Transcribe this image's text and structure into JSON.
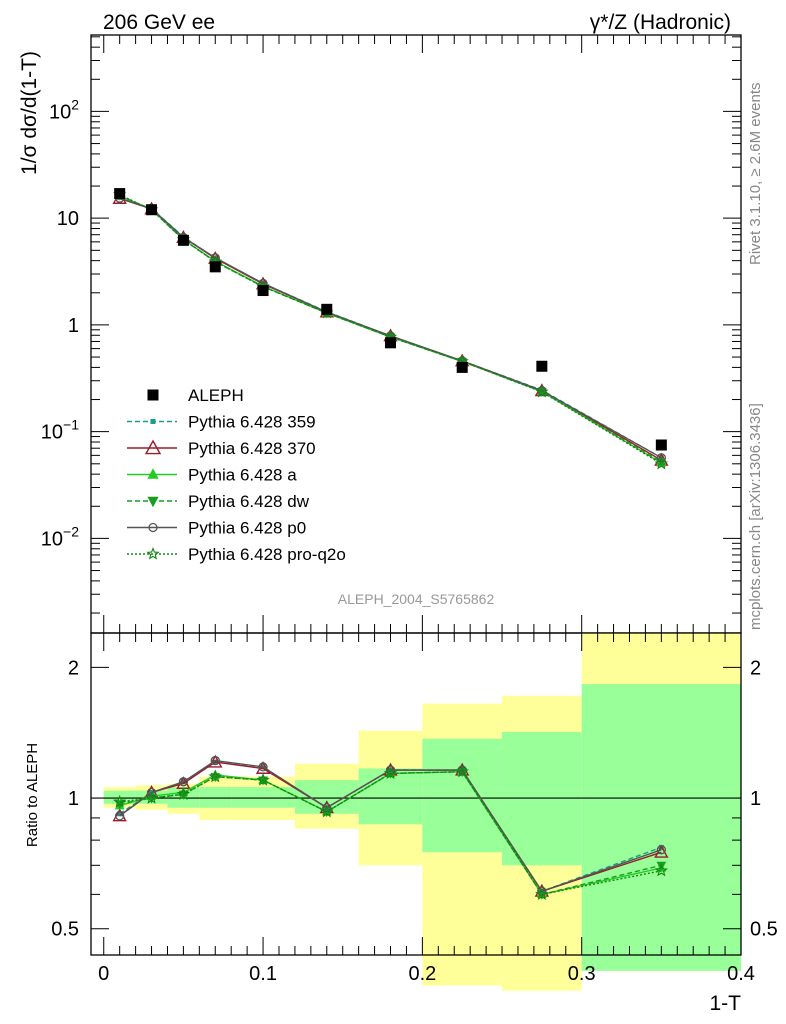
{
  "header": {
    "left": "206 GeV ee",
    "right": "γ*/Z (Hadronic)"
  },
  "side_labels": [
    "Rivet 3.1.10, ≥ 2.6M events",
    "mcplots.cern.ch [arXiv:1306.3436]"
  ],
  "analysis_id": "ALEPH_2004_S5765862",
  "chart_data": [
    {
      "type": "scatter",
      "ylabel": "1/σ dσ/d(1-T)",
      "log_y": true,
      "ylim": [
        0.0013,
        520
      ],
      "xlim": [
        -0.008,
        0.4
      ],
      "yticks": [
        {
          "v": 0.01,
          "base": "10",
          "exp": "−2"
        },
        {
          "v": 0.1,
          "base": "10",
          "exp": "−1"
        },
        {
          "v": 1,
          "base": "1",
          "exp": ""
        },
        {
          "v": 10,
          "base": "10",
          "exp": ""
        },
        {
          "v": 100,
          "base": "10",
          "exp": "2"
        }
      ],
      "data": {
        "name": "ALEPH",
        "x": [
          0.01,
          0.03,
          0.05,
          0.07,
          0.1,
          0.14,
          0.18,
          0.225,
          0.275,
          0.35
        ],
        "y": [
          17.0,
          12.0,
          6.2,
          3.5,
          2.1,
          1.4,
          0.68,
          0.4,
          0.41,
          0.075
        ]
      },
      "series": [
        {
          "name": "Pythia 6.428 359",
          "color": "#1a9e8c",
          "dash": "5,3",
          "marker": "square-small",
          "x": [
            0.01,
            0.03,
            0.05,
            0.07,
            0.1,
            0.14,
            0.18,
            0.225,
            0.275,
            0.35
          ],
          "y": [
            15.6,
            12.3,
            6.7,
            4.2,
            2.45,
            1.33,
            0.79,
            0.46,
            0.245,
            0.057
          ]
        },
        {
          "name": "Pythia 6.428 370",
          "color": "#9c1c2c",
          "dash": "",
          "marker": "triangle-open",
          "x": [
            0.01,
            0.03,
            0.05,
            0.07,
            0.1,
            0.14,
            0.18,
            0.225,
            0.275,
            0.35
          ],
          "y": [
            15.3,
            12.2,
            6.6,
            4.2,
            2.42,
            1.32,
            0.79,
            0.46,
            0.242,
            0.054
          ]
        },
        {
          "name": "Pythia 6.428 a",
          "color": "#22cc22",
          "dash": "",
          "marker": "triangle-filled",
          "x": [
            0.01,
            0.03,
            0.05,
            0.07,
            0.1,
            0.14,
            0.18,
            0.225,
            0.275,
            0.35
          ],
          "y": [
            16.2,
            12.1,
            6.3,
            3.95,
            2.3,
            1.29,
            0.77,
            0.455,
            0.238,
            0.051
          ]
        },
        {
          "name": "Pythia 6.428 dw",
          "color": "#1a9e22",
          "dash": "5,3",
          "marker": "triangle-down",
          "x": [
            0.01,
            0.03,
            0.05,
            0.07,
            0.1,
            0.14,
            0.18,
            0.225,
            0.275,
            0.35
          ],
          "y": [
            16.4,
            12.0,
            6.3,
            3.9,
            2.28,
            1.29,
            0.77,
            0.455,
            0.238,
            0.052
          ]
        },
        {
          "name": "Pythia 6.428 p0",
          "color": "#555555",
          "dash": "",
          "marker": "circle-open",
          "x": [
            0.01,
            0.03,
            0.05,
            0.07,
            0.1,
            0.14,
            0.18,
            0.225,
            0.275,
            0.35
          ],
          "y": [
            15.4,
            12.3,
            6.6,
            4.25,
            2.45,
            1.32,
            0.79,
            0.46,
            0.242,
            0.057
          ]
        },
        {
          "name": "Pythia 6.428 pro-q2o",
          "color": "#118811",
          "dash": "2,2",
          "marker": "star",
          "x": [
            0.01,
            0.03,
            0.05,
            0.07,
            0.1,
            0.14,
            0.18,
            0.225,
            0.275,
            0.35
          ],
          "y": [
            16.6,
            12.0,
            6.3,
            3.9,
            2.28,
            1.3,
            0.77,
            0.455,
            0.236,
            0.05
          ]
        }
      ]
    },
    {
      "type": "scatter",
      "ylabel": "Ratio to ALEPH",
      "xlabel": "1-T",
      "log_y": true,
      "ylim": [
        0.435,
        2.4
      ],
      "xlim": [
        -0.008,
        0.4
      ],
      "xticks": [
        0,
        0.1,
        0.2,
        0.3,
        0.4
      ],
      "yticks": [
        0.5,
        1,
        2
      ],
      "bands": {
        "edges": [
          0.0,
          0.02,
          0.04,
          0.06,
          0.08,
          0.12,
          0.16,
          0.2,
          0.25,
          0.3,
          0.4
        ],
        "inner": [
          [
            0.97,
            1.04
          ],
          [
            0.97,
            1.04
          ],
          [
            0.95,
            1.06
          ],
          [
            0.95,
            1.06
          ],
          [
            0.95,
            1.06
          ],
          [
            0.92,
            1.1
          ],
          [
            0.87,
            1.17
          ],
          [
            0.75,
            1.37
          ],
          [
            0.7,
            1.42
          ],
          [
            0.4,
            1.83
          ]
        ],
        "outer": [
          [
            0.95,
            1.06
          ],
          [
            0.94,
            1.07
          ],
          [
            0.92,
            1.08
          ],
          [
            0.89,
            1.12
          ],
          [
            0.89,
            1.12
          ],
          [
            0.85,
            1.2
          ],
          [
            0.7,
            1.43
          ],
          [
            0.37,
            1.65
          ],
          [
            0.36,
            1.72
          ],
          [
            0.4,
            2.4
          ]
        ]
      },
      "series": [
        {
          "name": "Pythia 6.428 359",
          "y": [
            0.92,
            1.03,
            1.09,
            1.21,
            1.18,
            0.95,
            1.16,
            1.16,
            0.61,
            0.77
          ]
        },
        {
          "name": "Pythia 6.428 370",
          "y": [
            0.91,
            1.03,
            1.08,
            1.21,
            1.17,
            0.95,
            1.16,
            1.16,
            0.61,
            0.75
          ]
        },
        {
          "name": "Pythia 6.428 a",
          "y": [
            0.96,
            1.01,
            1.03,
            1.13,
            1.1,
            0.93,
            1.14,
            1.15,
            0.6,
            0.69
          ]
        },
        {
          "name": "Pythia 6.428 dw",
          "y": [
            0.97,
            1.0,
            1.02,
            1.12,
            1.1,
            0.93,
            1.14,
            1.15,
            0.6,
            0.7
          ]
        },
        {
          "name": "Pythia 6.428 p0",
          "y": [
            0.91,
            1.03,
            1.09,
            1.22,
            1.18,
            0.95,
            1.16,
            1.16,
            0.61,
            0.76
          ]
        },
        {
          "name": "Pythia 6.428 pro-q2o",
          "y": [
            0.98,
            1.0,
            1.02,
            1.12,
            1.1,
            0.93,
            1.14,
            1.15,
            0.6,
            0.68
          ]
        }
      ]
    }
  ]
}
